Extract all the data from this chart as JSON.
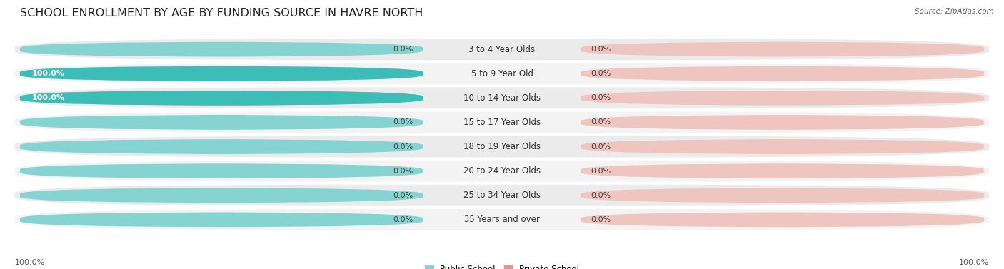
{
  "title": "SCHOOL ENROLLMENT BY AGE BY FUNDING SOURCE IN HAVRE NORTH",
  "source": "Source: ZipAtlas.com",
  "categories": [
    "3 to 4 Year Olds",
    "5 to 9 Year Old",
    "10 to 14 Year Olds",
    "15 to 17 Year Olds",
    "18 to 19 Year Olds",
    "20 to 24 Year Olds",
    "25 to 34 Year Olds",
    "35 Years and over"
  ],
  "public_values": [
    0.0,
    100.0,
    100.0,
    0.0,
    0.0,
    0.0,
    0.0,
    0.0
  ],
  "private_values": [
    0.0,
    0.0,
    0.0,
    0.0,
    0.0,
    0.0,
    0.0,
    0.0
  ],
  "public_color": "#3dbdb8",
  "public_color_light": "#85d4d1",
  "private_color": "#e8938a",
  "private_color_stub": "#e8b5b0",
  "title_fontsize": 11.5,
  "label_fontsize": 8.5,
  "value_fontsize": 8,
  "fig_bg_color": "#ffffff",
  "bottom_left_label": "100.0%",
  "bottom_right_label": "100.0%"
}
